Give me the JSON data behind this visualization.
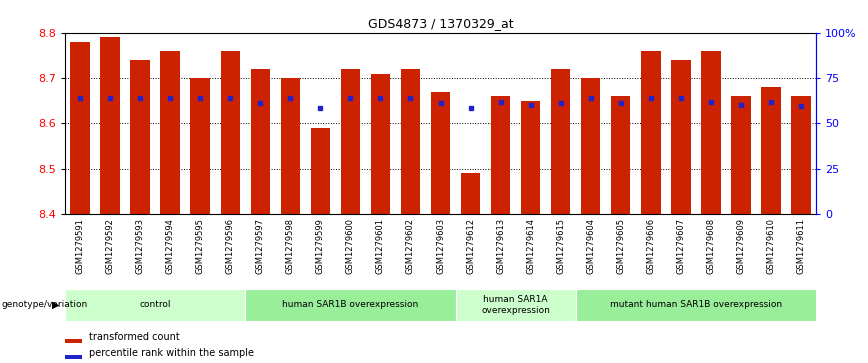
{
  "title": "GDS4873 / 1370329_at",
  "samples": [
    "GSM1279591",
    "GSM1279592",
    "GSM1279593",
    "GSM1279594",
    "GSM1279595",
    "GSM1279596",
    "GSM1279597",
    "GSM1279598",
    "GSM1279599",
    "GSM1279600",
    "GSM1279601",
    "GSM1279602",
    "GSM1279603",
    "GSM1279612",
    "GSM1279613",
    "GSM1279614",
    "GSM1279615",
    "GSM1279604",
    "GSM1279605",
    "GSM1279606",
    "GSM1279607",
    "GSM1279608",
    "GSM1279609",
    "GSM1279610",
    "GSM1279611"
  ],
  "bar_values": [
    8.78,
    8.79,
    8.74,
    8.76,
    8.7,
    8.76,
    8.72,
    8.7,
    8.59,
    8.72,
    8.71,
    8.72,
    8.67,
    8.49,
    8.66,
    8.65,
    8.72,
    8.7,
    8.66,
    8.76,
    8.74,
    8.76,
    8.66,
    8.68,
    8.66
  ],
  "blue_dot_values": [
    8.655,
    8.657,
    8.655,
    8.655,
    8.655,
    8.655,
    8.645,
    8.655,
    8.635,
    8.655,
    8.655,
    8.655,
    8.645,
    8.635,
    8.648,
    8.64,
    8.645,
    8.655,
    8.645,
    8.655,
    8.655,
    8.648,
    8.64,
    8.648,
    8.638
  ],
  "bar_color": "#cc2200",
  "dot_color": "#2222cc",
  "ymin": 8.4,
  "ymax": 8.8,
  "yticks": [
    8.4,
    8.5,
    8.6,
    8.7,
    8.8
  ],
  "groups": [
    {
      "label": "control",
      "start": 0,
      "end": 6,
      "color": "#ccffcc"
    },
    {
      "label": "human SAR1B overexpression",
      "start": 6,
      "end": 13,
      "color": "#99ee99"
    },
    {
      "label": "human SAR1A\noverexpression",
      "start": 13,
      "end": 17,
      "color": "#ccffcc"
    },
    {
      "label": "mutant human SAR1B overexpression",
      "start": 17,
      "end": 25,
      "color": "#99ee99"
    }
  ],
  "legend_items": [
    {
      "label": "transformed count",
      "color": "#cc2200"
    },
    {
      "label": "percentile rank within the sample",
      "color": "#2222cc"
    }
  ],
  "genotype_label": "genotype/variation",
  "xtick_bg": "#d0d0d0"
}
